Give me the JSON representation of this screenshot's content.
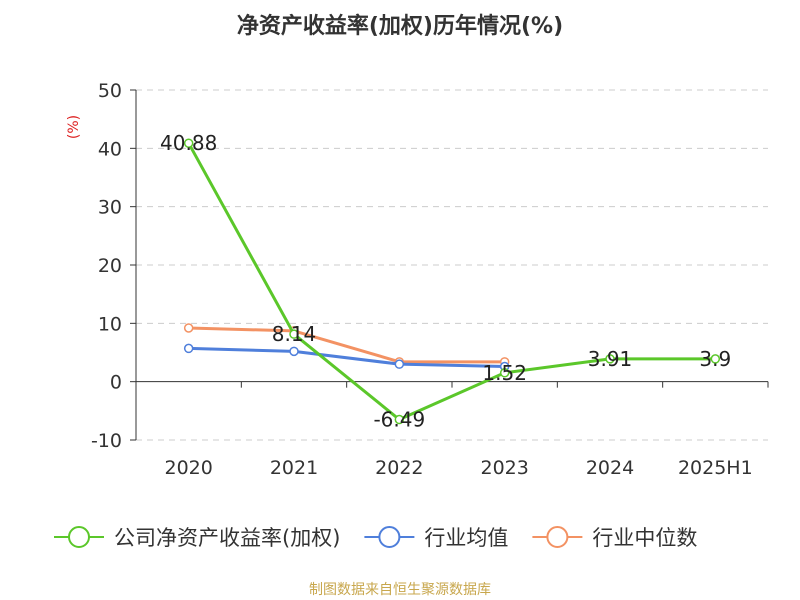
{
  "chart_data": {
    "type": "line",
    "title": "净资产收益率(加权)历年情况(%)",
    "ylabel": "(%)",
    "xlabel": "",
    "ylim": [
      -10,
      50
    ],
    "yticks": [
      -10,
      0,
      10,
      20,
      30,
      40,
      50
    ],
    "grid": true,
    "legend_position": "bottom",
    "categories": [
      "2020",
      "2021",
      "2022",
      "2023",
      "2024",
      "2025H1"
    ],
    "series": [
      {
        "name": "公司净资产收益率(加权)",
        "color": "#5bc72a",
        "values": [
          40.88,
          8.14,
          -6.49,
          1.52,
          3.91,
          3.9
        ],
        "labels": [
          "40.88",
          "8.14",
          "-6.49",
          "1.52",
          "3.91",
          "3.9"
        ]
      },
      {
        "name": "行业均值",
        "color": "#4f7fdb",
        "values": [
          5.7,
          5.2,
          3.0,
          2.6,
          null,
          null
        ]
      },
      {
        "name": "行业中位数",
        "color": "#f39263",
        "values": [
          9.2,
          8.7,
          3.4,
          3.4,
          null,
          null
        ]
      }
    ]
  },
  "source": "制图数据来自恒生聚源数据库"
}
